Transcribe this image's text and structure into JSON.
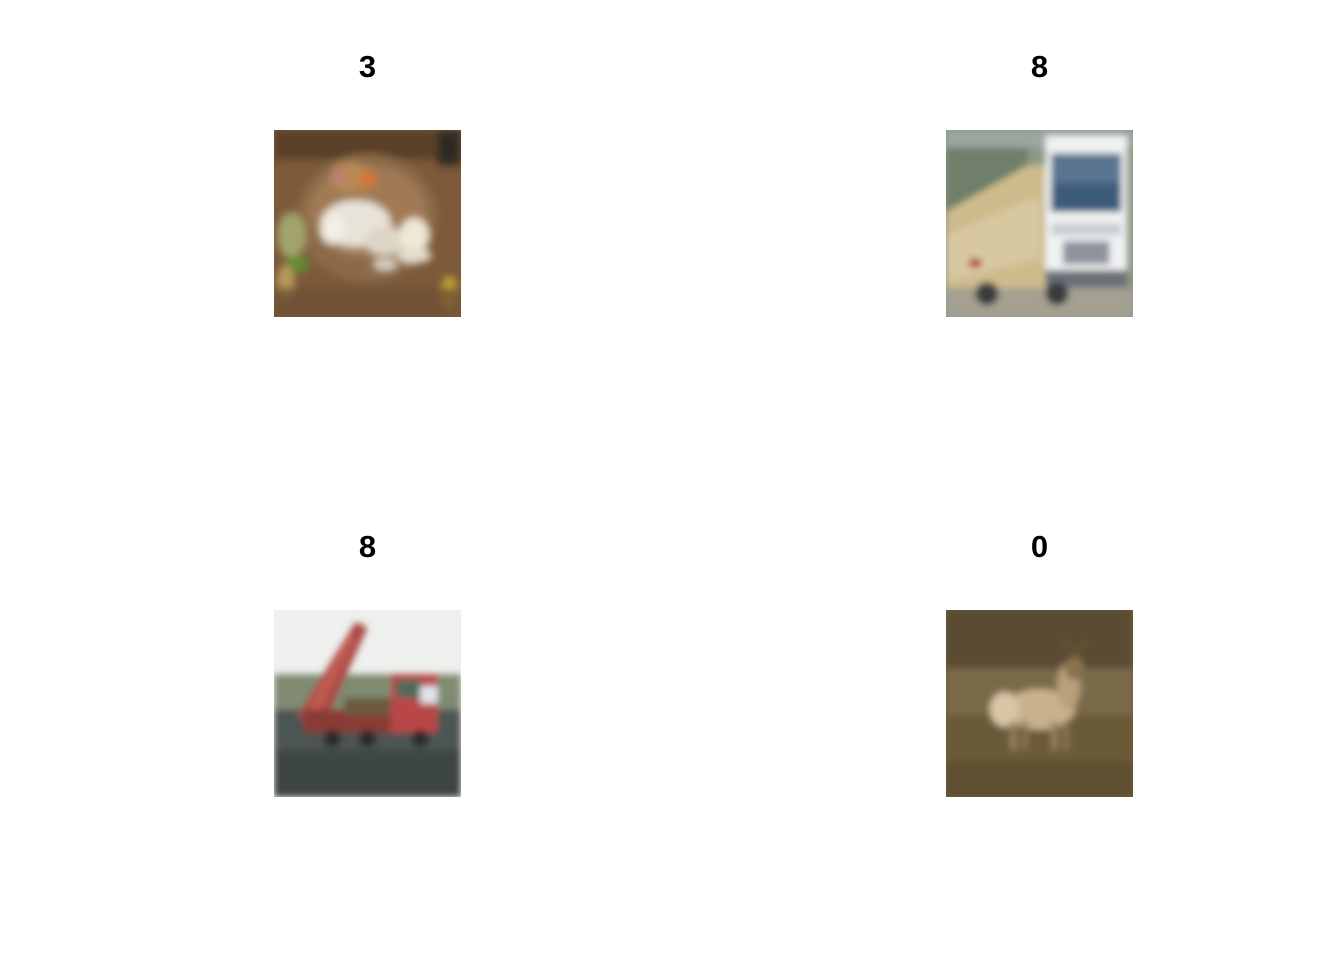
{
  "panels": [
    {
      "label": "3",
      "depicts": "frog"
    },
    {
      "label": "8",
      "depicts": "truck"
    },
    {
      "label": "8",
      "depicts": "dump-truck"
    },
    {
      "label": "0",
      "depicts": "deer"
    }
  ]
}
